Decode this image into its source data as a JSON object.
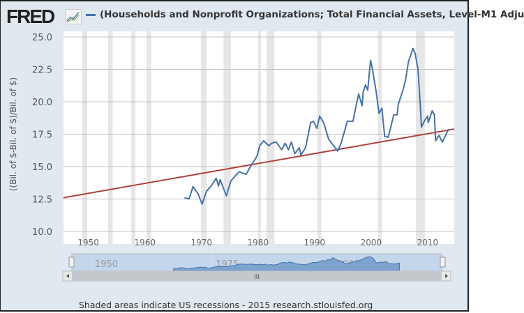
{
  "header": {
    "logo": "FRED",
    "logo_icon": "chart-line-icon",
    "title": "(Households and Nonprofit Organizations; Total Financial Assets, Level-M1 Adju"
  },
  "footer": {
    "note": "Shaded areas indicate US recessions - 2015 research.stlouisfed.org"
  },
  "navigator": {
    "labels": [
      "1950",
      "1975",
      "2000"
    ],
    "handle_glyph": "III"
  },
  "chart_data": {
    "type": "line",
    "title": "(Households and Nonprofit Organizations; Total Financial Assets, Level-M1 Adju",
    "ylabel": "((Bil. of $-Bil. of $)/Bil. of $)",
    "xlabel": "",
    "xlim": [
      1945.6,
      2014.7
    ],
    "ylim": [
      10,
      25
    ],
    "xticks": [
      1950,
      1960,
      1970,
      1980,
      1990,
      2000,
      2010
    ],
    "yticks": [
      "10.0",
      "12.5",
      "15.0",
      "17.5",
      "20.0",
      "22.5",
      "25.0"
    ],
    "grid": true,
    "colors": {
      "series": "#4572a7",
      "trend": "#b0413e",
      "recession": "#e6e6e6"
    },
    "recessions": [
      [
        1948.9,
        1949.8
      ],
      [
        1953.5,
        1954.3
      ],
      [
        1957.6,
        1958.3
      ],
      [
        1960.3,
        1961.1
      ],
      [
        1969.9,
        1970.9
      ],
      [
        1973.9,
        1975.2
      ],
      [
        1980.0,
        1980.5
      ],
      [
        1981.5,
        1982.9
      ],
      [
        1990.5,
        1991.2
      ],
      [
        2001.2,
        2001.9
      ],
      [
        2007.9,
        2009.5
      ]
    ],
    "series": [
      {
        "x": [
          1967.0,
          1967.8,
          1968.5,
          1969.4,
          1970.1,
          1970.9,
          1971.7,
          1972.6,
          1973.0,
          1973.3,
          1974.4,
          1975.2,
          1976.0,
          1976.7,
          1977.9,
          1978.6,
          1979.8,
          1980.3,
          1981.0,
          1981.9,
          1982.4,
          1983.2,
          1984.2,
          1984.8,
          1985.4,
          1985.9,
          1986.5,
          1987.3,
          1987.6,
          1988.4,
          1989.3,
          1989.8,
          1990.4,
          1990.9,
          1991.6,
          1992.5,
          1994.1,
          1994.7,
          1995.8,
          1996.8,
          1997.4,
          1997.8,
          1998.4,
          1998.6,
          1999.0,
          1999.4,
          1999.9,
          2000.2,
          2000.9,
          2001.4,
          2001.9,
          2002.4,
          2003.0,
          2003.4,
          2004.0,
          2004.6,
          2004.8,
          2005.6,
          2006.1,
          2006.6,
          2007.4,
          2007.8,
          2008.3,
          2008.7,
          2008.9,
          2009.4,
          2010.0,
          2010.1,
          2010.8,
          2011.2,
          2011.4,
          2012.0,
          2012.6,
          2013.1,
          2013.7
        ],
        "y": [
          12.6,
          12.5,
          13.45,
          12.9,
          12.1,
          13.1,
          13.5,
          14.1,
          13.5,
          14.0,
          12.75,
          13.9,
          14.3,
          14.6,
          14.4,
          14.95,
          15.8,
          16.6,
          17.0,
          16.6,
          16.8,
          16.9,
          16.3,
          16.8,
          16.3,
          16.9,
          16.0,
          16.45,
          15.9,
          16.45,
          18.4,
          18.5,
          17.95,
          18.9,
          18.4,
          17.1,
          16.2,
          16.8,
          18.5,
          18.5,
          19.8,
          20.6,
          19.7,
          20.75,
          21.3,
          20.9,
          23.2,
          22.6,
          20.75,
          19.1,
          19.5,
          17.35,
          17.25,
          17.9,
          19.0,
          19.0,
          19.8,
          20.85,
          21.7,
          23.1,
          24.1,
          23.7,
          22.5,
          19.7,
          18.05,
          18.5,
          18.9,
          18.4,
          19.3,
          19.0,
          17.0,
          17.4,
          16.9,
          17.35,
          17.9
        ]
      },
      {
        "x": [
          1945.6,
          2014.7
        ],
        "y": [
          12.6,
          17.9
        ]
      }
    ]
  }
}
